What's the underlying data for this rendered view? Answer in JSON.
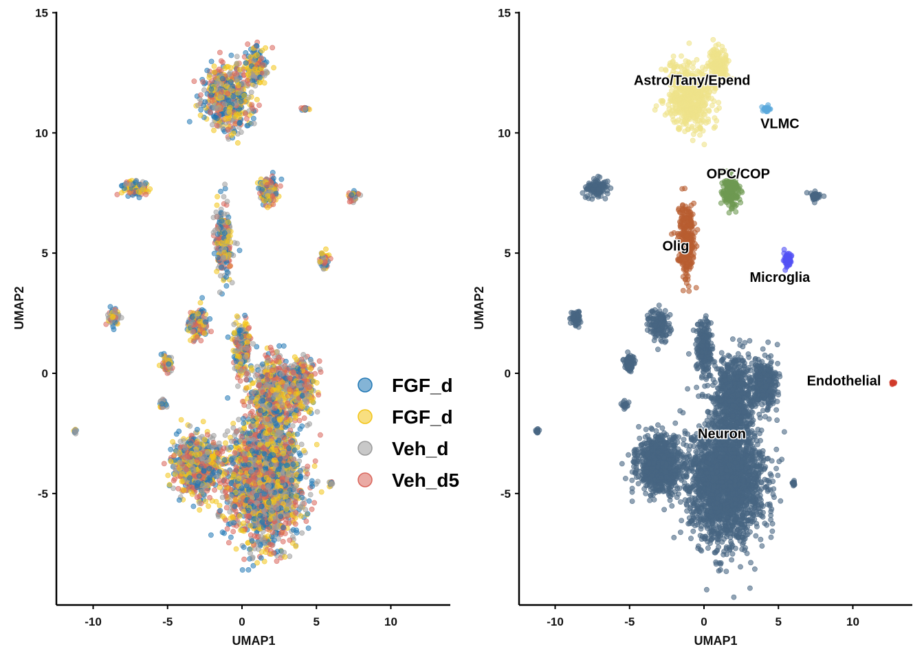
{
  "chart_data": [
    {
      "type": "scatter",
      "title": "",
      "xlabel": "UMAP1",
      "ylabel": "UMAP2",
      "xlim": [
        -12.5,
        14
      ],
      "ylim": [
        -9.5,
        15
      ],
      "xticks": [
        -10,
        -5,
        0,
        5,
        10
      ],
      "yticks": [
        -5,
        0,
        5,
        10,
        15
      ],
      "xtick_labels": [
        "-10",
        "-5",
        "0",
        "5",
        "10"
      ],
      "ytick_labels": [
        "-5",
        "0",
        "5",
        "10",
        "15"
      ],
      "grid": false,
      "legend_position": "right (clipped)",
      "legend": [
        {
          "label": "FGF_d",
          "color": "#1f77b4"
        },
        {
          "label": "FGF_d",
          "color": "#f2c418"
        },
        {
          "label": "Veh_d",
          "color": "#9a9a9a"
        },
        {
          "label": "Veh_d5",
          "color": "#d9645a"
        }
      ],
      "series_colors": [
        "#1f77b4",
        "#f2c418",
        "#9a9a9a",
        "#d9645a"
      ],
      "clusters": [
        {
          "x": 1.5,
          "y": -4.5,
          "sx": 2.2,
          "sy": 2.2,
          "w": 60
        },
        {
          "x": -3.0,
          "y": -3.8,
          "sx": 1.3,
          "sy": 1.0,
          "w": 22
        },
        {
          "x": 2.0,
          "y": -1.0,
          "sx": 1.2,
          "sy": 1.6,
          "w": 18
        },
        {
          "x": 4.0,
          "y": -0.5,
          "sx": 0.8,
          "sy": 1.0,
          "w": 8
        },
        {
          "x": 0.0,
          "y": 1.0,
          "sx": 0.5,
          "sy": 1.0,
          "w": 6
        },
        {
          "x": 2.0,
          "y": 6.0,
          "sx": 0.0,
          "sy": 0.0,
          "w": 0
        },
        {
          "x": -3.0,
          "y": 2.0,
          "sx": 0.6,
          "sy": 0.6,
          "w": 4
        },
        {
          "x": -5.0,
          "y": 0.4,
          "sx": 0.3,
          "sy": 0.3,
          "w": 2
        },
        {
          "x": -1.2,
          "y": 5.5,
          "sx": 0.5,
          "sy": 1.3,
          "w": 7
        },
        {
          "x": -1.0,
          "y": 11.5,
          "sx": 1.4,
          "sy": 1.2,
          "w": 14
        },
        {
          "x": 1.0,
          "y": 12.8,
          "sx": 0.6,
          "sy": 0.7,
          "w": 4
        },
        {
          "x": 1.8,
          "y": 7.6,
          "sx": 0.6,
          "sy": 0.5,
          "w": 4
        },
        {
          "x": -7.2,
          "y": 7.7,
          "sx": 0.7,
          "sy": 0.3,
          "w": 3
        },
        {
          "x": -8.6,
          "y": 2.3,
          "sx": 0.3,
          "sy": 0.3,
          "w": 1.5
        },
        {
          "x": 5.5,
          "y": 4.7,
          "sx": 0.3,
          "sy": 0.3,
          "w": 1.5
        },
        {
          "x": 7.5,
          "y": 7.4,
          "sx": 0.3,
          "sy": 0.2,
          "w": 1
        },
        {
          "x": 4.2,
          "y": 11.0,
          "sx": 0.2,
          "sy": 0.1,
          "w": 0.5
        },
        {
          "x": -11.2,
          "y": -2.4,
          "sx": 0.1,
          "sy": 0.1,
          "w": 0.3
        },
        {
          "x": -5.3,
          "y": -1.3,
          "sx": 0.2,
          "sy": 0.2,
          "w": 0.5
        },
        {
          "x": 6.0,
          "y": -4.6,
          "sx": 0.1,
          "sy": 0.1,
          "w": 0.4
        }
      ]
    },
    {
      "type": "scatter",
      "title": "",
      "xlabel": "UMAP1",
      "ylabel": "UMAP2",
      "xlim": [
        -12.5,
        14
      ],
      "ylim": [
        -9.5,
        15
      ],
      "xticks": [
        -10,
        -5,
        0,
        5,
        10
      ],
      "yticks": [
        -5,
        0,
        5,
        10,
        15
      ],
      "xtick_labels": [
        "-10",
        "-5",
        "0",
        "5",
        "10"
      ],
      "ytick_labels": [
        "-5",
        "0",
        "5",
        "10",
        "15"
      ],
      "grid": false,
      "cell_types": [
        {
          "name": "Neuron",
          "label_x": 1.2,
          "label_y": -2.5,
          "color": "#476582"
        },
        {
          "name": "Astro/Tany/Epend",
          "label_x": -0.8,
          "label_y": 12.2,
          "color": "#efe38a"
        },
        {
          "name": "VLMC",
          "label_x": 5.1,
          "label_y": 10.4,
          "color": "#5aa9dc"
        },
        {
          "name": "OPC/COP",
          "label_x": 2.3,
          "label_y": 8.3,
          "color": "#6e9a52"
        },
        {
          "name": "Olig",
          "label_x": -1.9,
          "label_y": 5.3,
          "color": "#b85d30"
        },
        {
          "name": "Microglia",
          "label_x": 5.1,
          "label_y": 4.0,
          "color": "#5451f5"
        },
        {
          "name": "Endothelial",
          "label_x": 9.4,
          "label_y": -0.3,
          "color": "#d03b2a"
        }
      ],
      "clusters": [
        {
          "x": 1.5,
          "y": -4.5,
          "sx": 2.2,
          "sy": 2.2,
          "w": 60,
          "t": 0
        },
        {
          "x": -3.0,
          "y": -3.8,
          "sx": 1.3,
          "sy": 1.0,
          "w": 22,
          "t": 0
        },
        {
          "x": 2.0,
          "y": -1.0,
          "sx": 1.2,
          "sy": 1.6,
          "w": 18,
          "t": 0
        },
        {
          "x": 4.0,
          "y": -0.5,
          "sx": 0.8,
          "sy": 1.0,
          "w": 8,
          "t": 0
        },
        {
          "x": 0.0,
          "y": 1.0,
          "sx": 0.5,
          "sy": 1.0,
          "w": 6,
          "t": 0
        },
        {
          "x": -3.0,
          "y": 2.0,
          "sx": 0.6,
          "sy": 0.6,
          "w": 4,
          "t": 0
        },
        {
          "x": -5.0,
          "y": 0.4,
          "sx": 0.3,
          "sy": 0.3,
          "w": 2,
          "t": 0
        },
        {
          "x": -7.2,
          "y": 7.7,
          "sx": 0.7,
          "sy": 0.3,
          "w": 3,
          "t": 0
        },
        {
          "x": -8.6,
          "y": 2.3,
          "sx": 0.3,
          "sy": 0.3,
          "w": 1.5,
          "t": 0
        },
        {
          "x": 7.5,
          "y": 7.4,
          "sx": 0.3,
          "sy": 0.2,
          "w": 1,
          "t": 0
        },
        {
          "x": -11.2,
          "y": -2.4,
          "sx": 0.1,
          "sy": 0.1,
          "w": 0.3,
          "t": 0
        },
        {
          "x": -5.3,
          "y": -1.3,
          "sx": 0.2,
          "sy": 0.2,
          "w": 0.5,
          "t": 0
        },
        {
          "x": 6.0,
          "y": -4.6,
          "sx": 0.1,
          "sy": 0.1,
          "w": 0.4,
          "t": 0
        },
        {
          "x": -1.0,
          "y": 11.5,
          "sx": 1.4,
          "sy": 1.2,
          "w": 14,
          "t": 1
        },
        {
          "x": 1.0,
          "y": 12.8,
          "sx": 0.6,
          "sy": 0.7,
          "w": 4,
          "t": 1
        },
        {
          "x": 4.2,
          "y": 11.0,
          "sx": 0.2,
          "sy": 0.1,
          "w": 0.6,
          "t": 2
        },
        {
          "x": 1.8,
          "y": 7.6,
          "sx": 0.6,
          "sy": 0.6,
          "w": 4,
          "t": 3
        },
        {
          "x": -1.2,
          "y": 5.5,
          "sx": 0.5,
          "sy": 1.3,
          "w": 7,
          "t": 4
        },
        {
          "x": 5.6,
          "y": 4.7,
          "sx": 0.3,
          "sy": 0.25,
          "w": 1.5,
          "t": 5
        },
        {
          "x": 12.7,
          "y": -0.4,
          "sx": 0.1,
          "sy": 0.05,
          "w": 0.3,
          "t": 6
        }
      ]
    }
  ]
}
